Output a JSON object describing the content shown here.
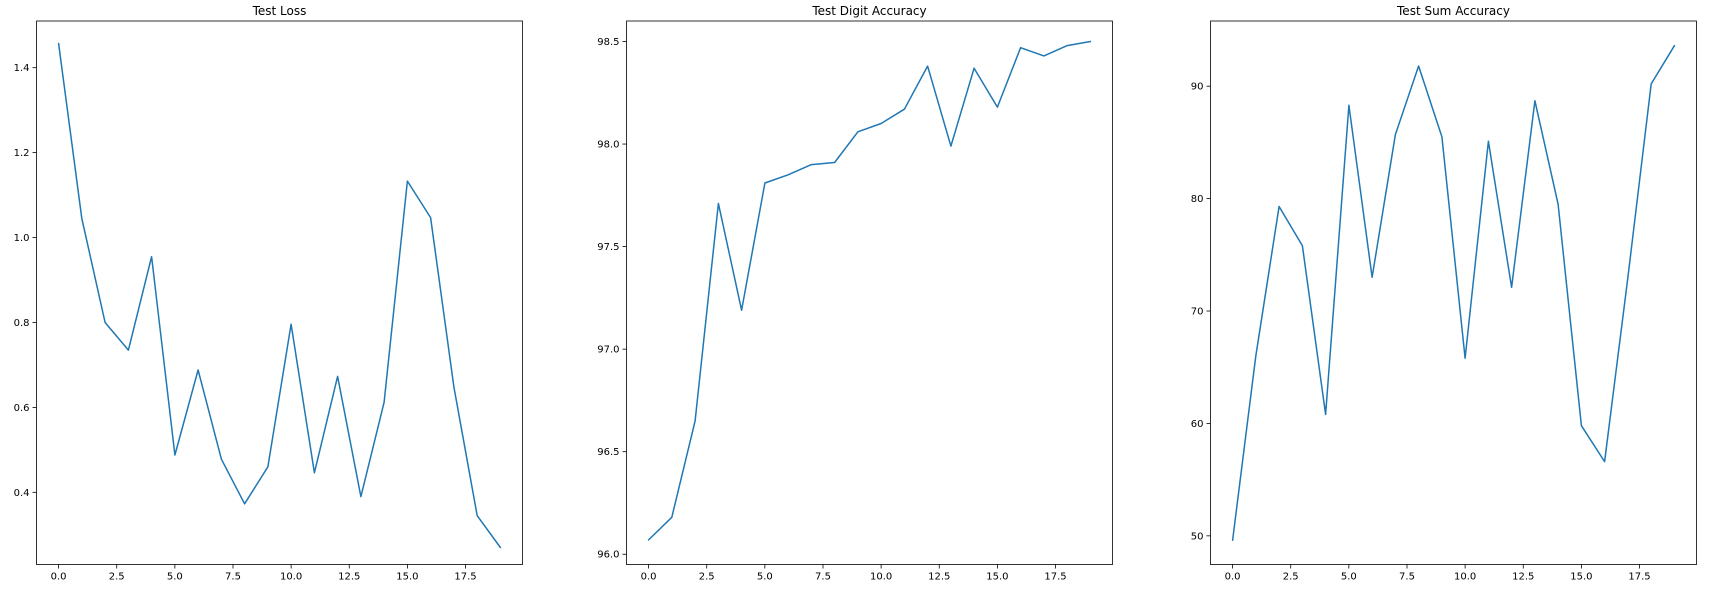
{
  "chart_data": [
    {
      "type": "line",
      "title": "Test Loss",
      "xlabel": "",
      "ylabel": "",
      "xlim": [
        -0.95,
        19.95
      ],
      "ylim": [
        0.23,
        1.51
      ],
      "xticks": [
        0.0,
        2.5,
        5.0,
        7.5,
        10.0,
        12.5,
        15.0,
        17.5
      ],
      "xtick_labels": [
        "0.0",
        "2.5",
        "5.0",
        "7.5",
        "10.0",
        "12.5",
        "15.0",
        "17.5"
      ],
      "yticks": [
        0.4,
        0.6,
        0.8,
        1.0,
        1.2,
        1.4
      ],
      "ytick_labels": [
        "0.4",
        "0.6",
        "0.8",
        "1.0",
        "1.2",
        "1.4"
      ],
      "grid": false,
      "color": "#1f77b4",
      "series": [
        {
          "x": [
            0,
            1,
            2,
            3,
            4,
            5,
            6,
            7,
            8,
            9,
            10,
            11,
            12,
            13,
            14,
            15,
            16,
            17,
            18,
            19
          ],
          "y": [
            1.457,
            1.045,
            0.8,
            0.735,
            0.955,
            0.488,
            0.688,
            0.478,
            0.373,
            0.46,
            0.796,
            0.446,
            0.673,
            0.39,
            0.612,
            1.133,
            1.047,
            0.648,
            0.345,
            0.27
          ]
        }
      ]
    },
    {
      "type": "line",
      "title": "Test Digit Accuracy",
      "xlabel": "",
      "ylabel": "",
      "xlim": [
        -0.95,
        19.95
      ],
      "ylim": [
        95.95,
        98.6
      ],
      "xticks": [
        0.0,
        2.5,
        5.0,
        7.5,
        10.0,
        12.5,
        15.0,
        17.5
      ],
      "xtick_labels": [
        "0.0",
        "2.5",
        "5.0",
        "7.5",
        "10.0",
        "12.5",
        "15.0",
        "17.5"
      ],
      "yticks": [
        96.0,
        96.5,
        97.0,
        97.5,
        98.0,
        98.5
      ],
      "ytick_labels": [
        "96.0",
        "96.5",
        "97.0",
        "97.5",
        "98.0",
        "98.5"
      ],
      "grid": false,
      "color": "#1f77b4",
      "series": [
        {
          "x": [
            0,
            1,
            2,
            3,
            4,
            5,
            6,
            7,
            8,
            9,
            10,
            11,
            12,
            13,
            14,
            15,
            16,
            17,
            18,
            19
          ],
          "y": [
            96.07,
            96.18,
            96.65,
            97.71,
            97.19,
            97.81,
            97.85,
            97.9,
            97.91,
            98.06,
            98.1,
            98.17,
            98.38,
            97.99,
            98.37,
            98.18,
            98.47,
            98.43,
            98.48,
            98.5
          ]
        }
      ]
    },
    {
      "type": "line",
      "title": "Test Sum Accuracy",
      "xlabel": "",
      "ylabel": "",
      "xlim": [
        -0.95,
        19.95
      ],
      "ylim": [
        47.45,
        95.8
      ],
      "xticks": [
        0.0,
        2.5,
        5.0,
        7.5,
        10.0,
        12.5,
        15.0,
        17.5
      ],
      "xtick_labels": [
        "0.0",
        "2.5",
        "5.0",
        "7.5",
        "10.0",
        "12.5",
        "15.0",
        "17.5"
      ],
      "yticks": [
        50,
        60,
        70,
        80,
        90
      ],
      "ytick_labels": [
        "50",
        "60",
        "70",
        "80",
        "90"
      ],
      "grid": false,
      "color": "#1f77b4",
      "series": [
        {
          "x": [
            0,
            1,
            2,
            3,
            4,
            5,
            6,
            7,
            8,
            9,
            10,
            11,
            12,
            13,
            14,
            15,
            16,
            17,
            18,
            19
          ],
          "y": [
            49.6,
            66.0,
            79.3,
            75.8,
            60.8,
            88.3,
            73.0,
            85.7,
            91.8,
            85.5,
            65.8,
            85.1,
            72.1,
            88.7,
            79.5,
            59.8,
            56.6,
            73.0,
            90.2,
            93.6
          ]
        }
      ]
    }
  ]
}
